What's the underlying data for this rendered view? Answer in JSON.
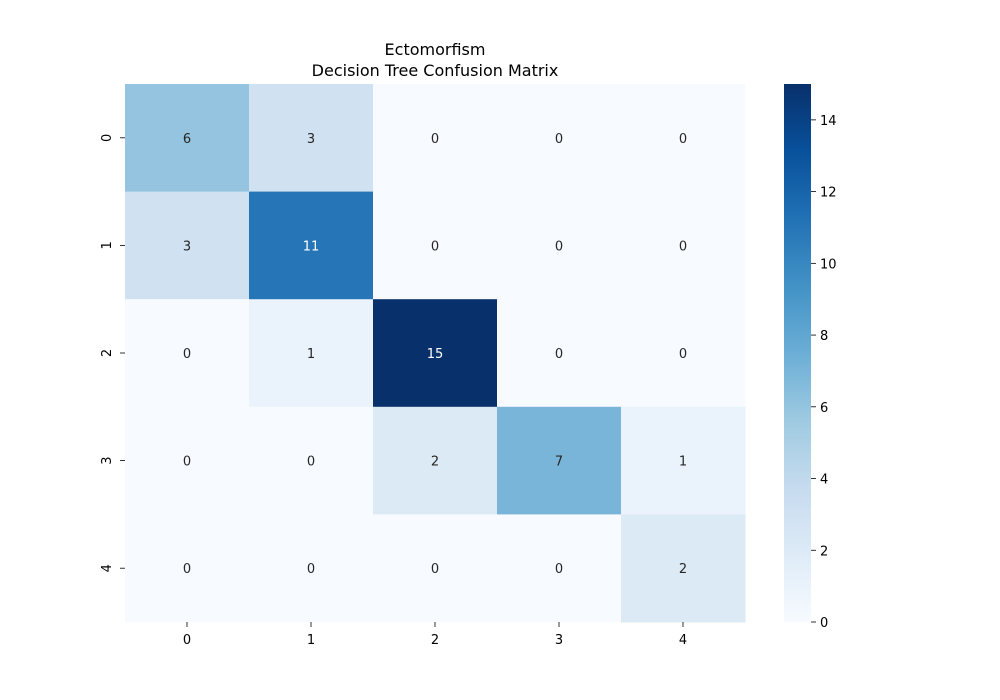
{
  "chart_data": {
    "type": "heatmap",
    "title": "Ectomorfism",
    "subtitle": "Decision Tree Confusion Matrix",
    "xlabel": "",
    "ylabel": "",
    "x_categories": [
      "0",
      "1",
      "2",
      "3",
      "4"
    ],
    "y_categories": [
      "0",
      "1",
      "2",
      "3",
      "4"
    ],
    "matrix": [
      [
        6,
        3,
        0,
        0,
        0
      ],
      [
        3,
        11,
        0,
        0,
        0
      ],
      [
        0,
        1,
        15,
        0,
        0
      ],
      [
        0,
        0,
        2,
        7,
        1
      ],
      [
        0,
        0,
        0,
        0,
        2
      ]
    ],
    "colorscale": "Blues",
    "colorbar": {
      "range": [
        0,
        15
      ],
      "ticks": [
        0,
        2,
        4,
        6,
        8,
        10,
        12,
        14
      ],
      "position": "right"
    },
    "grid": false
  }
}
